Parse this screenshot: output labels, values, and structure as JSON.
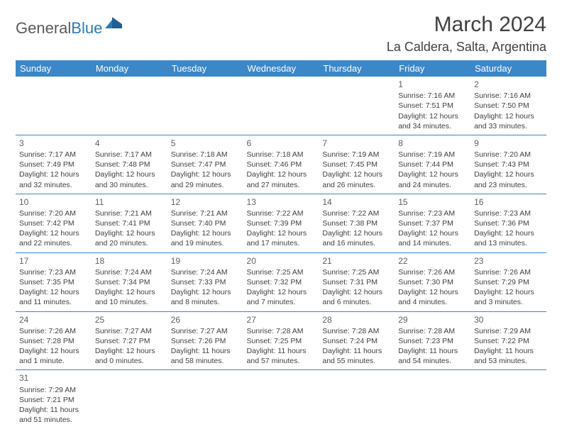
{
  "logo": {
    "text1": "General",
    "text2": "Blue"
  },
  "title": "March 2024",
  "location": "La Caldera, Salta, Argentina",
  "colors": {
    "header_bg": "#3b87c8",
    "header_text": "#ffffff",
    "text": "#404040",
    "row_border": "#3b87c8",
    "logo_gray": "#5a5a5a",
    "logo_blue": "#2a7ab8"
  },
  "day_headers": [
    "Sunday",
    "Monday",
    "Tuesday",
    "Wednesday",
    "Thursday",
    "Friday",
    "Saturday"
  ],
  "weeks": [
    [
      null,
      null,
      null,
      null,
      null,
      {
        "n": "1",
        "sr": "Sunrise: 7:16 AM",
        "ss": "Sunset: 7:51 PM",
        "dl": "Daylight: 12 hours and 34 minutes."
      },
      {
        "n": "2",
        "sr": "Sunrise: 7:16 AM",
        "ss": "Sunset: 7:50 PM",
        "dl": "Daylight: 12 hours and 33 minutes."
      }
    ],
    [
      {
        "n": "3",
        "sr": "Sunrise: 7:17 AM",
        "ss": "Sunset: 7:49 PM",
        "dl": "Daylight: 12 hours and 32 minutes."
      },
      {
        "n": "4",
        "sr": "Sunrise: 7:17 AM",
        "ss": "Sunset: 7:48 PM",
        "dl": "Daylight: 12 hours and 30 minutes."
      },
      {
        "n": "5",
        "sr": "Sunrise: 7:18 AM",
        "ss": "Sunset: 7:47 PM",
        "dl": "Daylight: 12 hours and 29 minutes."
      },
      {
        "n": "6",
        "sr": "Sunrise: 7:18 AM",
        "ss": "Sunset: 7:46 PM",
        "dl": "Daylight: 12 hours and 27 minutes."
      },
      {
        "n": "7",
        "sr": "Sunrise: 7:19 AM",
        "ss": "Sunset: 7:45 PM",
        "dl": "Daylight: 12 hours and 26 minutes."
      },
      {
        "n": "8",
        "sr": "Sunrise: 7:19 AM",
        "ss": "Sunset: 7:44 PM",
        "dl": "Daylight: 12 hours and 24 minutes."
      },
      {
        "n": "9",
        "sr": "Sunrise: 7:20 AM",
        "ss": "Sunset: 7:43 PM",
        "dl": "Daylight: 12 hours and 23 minutes."
      }
    ],
    [
      {
        "n": "10",
        "sr": "Sunrise: 7:20 AM",
        "ss": "Sunset: 7:42 PM",
        "dl": "Daylight: 12 hours and 22 minutes."
      },
      {
        "n": "11",
        "sr": "Sunrise: 7:21 AM",
        "ss": "Sunset: 7:41 PM",
        "dl": "Daylight: 12 hours and 20 minutes."
      },
      {
        "n": "12",
        "sr": "Sunrise: 7:21 AM",
        "ss": "Sunset: 7:40 PM",
        "dl": "Daylight: 12 hours and 19 minutes."
      },
      {
        "n": "13",
        "sr": "Sunrise: 7:22 AM",
        "ss": "Sunset: 7:39 PM",
        "dl": "Daylight: 12 hours and 17 minutes."
      },
      {
        "n": "14",
        "sr": "Sunrise: 7:22 AM",
        "ss": "Sunset: 7:38 PM",
        "dl": "Daylight: 12 hours and 16 minutes."
      },
      {
        "n": "15",
        "sr": "Sunrise: 7:23 AM",
        "ss": "Sunset: 7:37 PM",
        "dl": "Daylight: 12 hours and 14 minutes."
      },
      {
        "n": "16",
        "sr": "Sunrise: 7:23 AM",
        "ss": "Sunset: 7:36 PM",
        "dl": "Daylight: 12 hours and 13 minutes."
      }
    ],
    [
      {
        "n": "17",
        "sr": "Sunrise: 7:23 AM",
        "ss": "Sunset: 7:35 PM",
        "dl": "Daylight: 12 hours and 11 minutes."
      },
      {
        "n": "18",
        "sr": "Sunrise: 7:24 AM",
        "ss": "Sunset: 7:34 PM",
        "dl": "Daylight: 12 hours and 10 minutes."
      },
      {
        "n": "19",
        "sr": "Sunrise: 7:24 AM",
        "ss": "Sunset: 7:33 PM",
        "dl": "Daylight: 12 hours and 8 minutes."
      },
      {
        "n": "20",
        "sr": "Sunrise: 7:25 AM",
        "ss": "Sunset: 7:32 PM",
        "dl": "Daylight: 12 hours and 7 minutes."
      },
      {
        "n": "21",
        "sr": "Sunrise: 7:25 AM",
        "ss": "Sunset: 7:31 PM",
        "dl": "Daylight: 12 hours and 6 minutes."
      },
      {
        "n": "22",
        "sr": "Sunrise: 7:26 AM",
        "ss": "Sunset: 7:30 PM",
        "dl": "Daylight: 12 hours and 4 minutes."
      },
      {
        "n": "23",
        "sr": "Sunrise: 7:26 AM",
        "ss": "Sunset: 7:29 PM",
        "dl": "Daylight: 12 hours and 3 minutes."
      }
    ],
    [
      {
        "n": "24",
        "sr": "Sunrise: 7:26 AM",
        "ss": "Sunset: 7:28 PM",
        "dl": "Daylight: 12 hours and 1 minute."
      },
      {
        "n": "25",
        "sr": "Sunrise: 7:27 AM",
        "ss": "Sunset: 7:27 PM",
        "dl": "Daylight: 12 hours and 0 minutes."
      },
      {
        "n": "26",
        "sr": "Sunrise: 7:27 AM",
        "ss": "Sunset: 7:26 PM",
        "dl": "Daylight: 11 hours and 58 minutes."
      },
      {
        "n": "27",
        "sr": "Sunrise: 7:28 AM",
        "ss": "Sunset: 7:25 PM",
        "dl": "Daylight: 11 hours and 57 minutes."
      },
      {
        "n": "28",
        "sr": "Sunrise: 7:28 AM",
        "ss": "Sunset: 7:24 PM",
        "dl": "Daylight: 11 hours and 55 minutes."
      },
      {
        "n": "29",
        "sr": "Sunrise: 7:28 AM",
        "ss": "Sunset: 7:23 PM",
        "dl": "Daylight: 11 hours and 54 minutes."
      },
      {
        "n": "30",
        "sr": "Sunrise: 7:29 AM",
        "ss": "Sunset: 7:22 PM",
        "dl": "Daylight: 11 hours and 53 minutes."
      }
    ],
    [
      {
        "n": "31",
        "sr": "Sunrise: 7:29 AM",
        "ss": "Sunset: 7:21 PM",
        "dl": "Daylight: 11 hours and 51 minutes."
      },
      null,
      null,
      null,
      null,
      null,
      null
    ]
  ]
}
